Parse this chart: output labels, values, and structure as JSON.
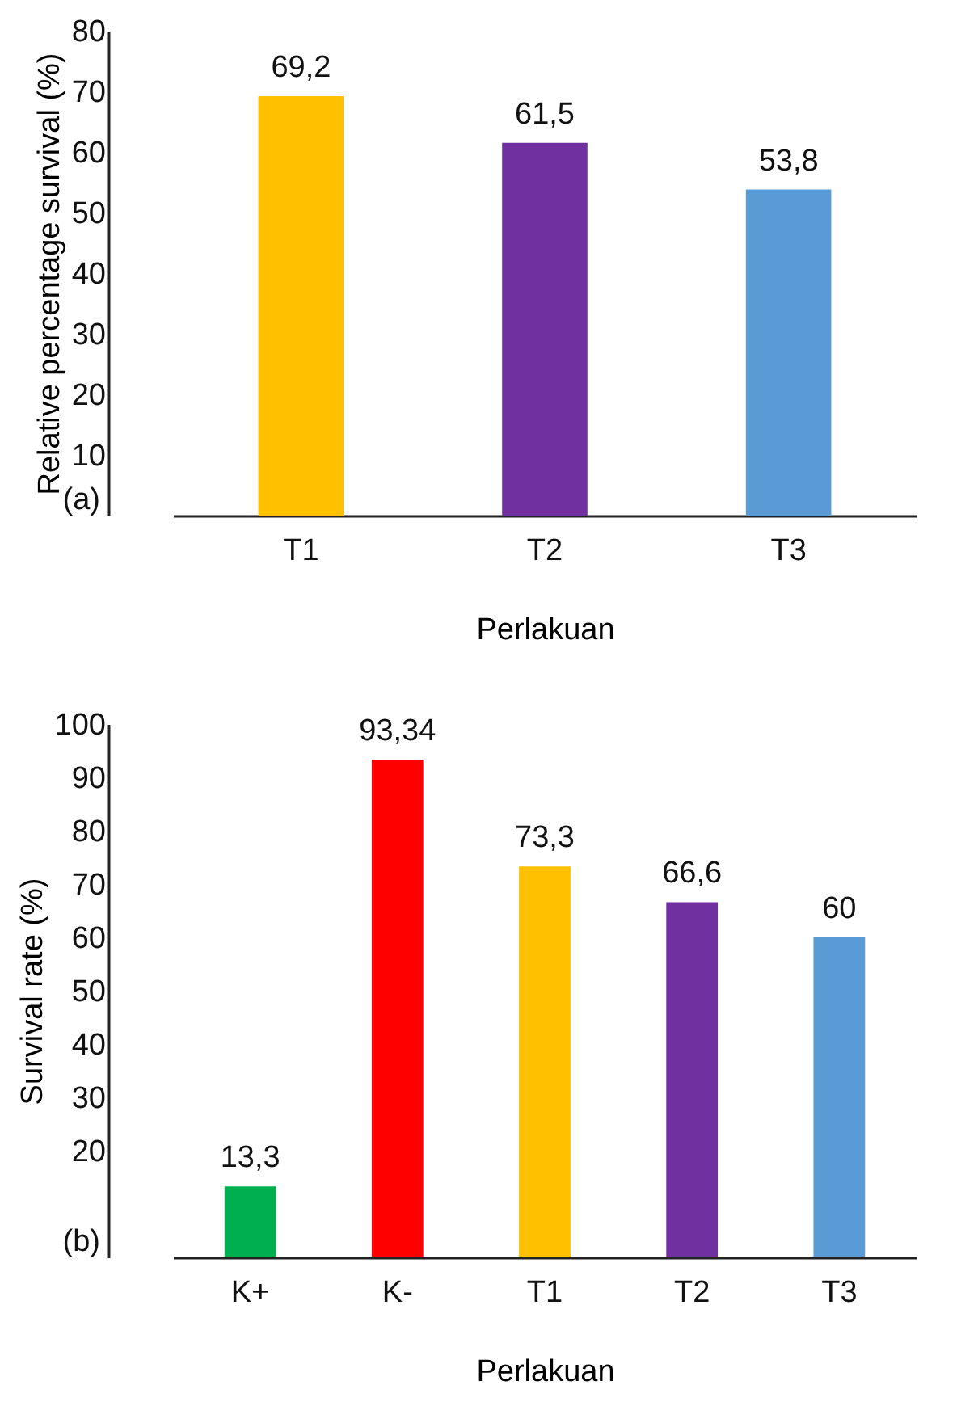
{
  "chart_data": [
    {
      "type": "bar",
      "xlabel": "Perlakuan",
      "ylabel": "Relative percentage survival (%)",
      "categories": [
        "T1",
        "T2",
        "T3"
      ],
      "values": [
        69.2,
        61.5,
        53.8
      ],
      "colors": [
        "#ffc000",
        "#7030a0",
        "#5b9bd5"
      ],
      "value_labels": [
        "69,2",
        "61,5",
        "53,8"
      ],
      "ylim": [
        0,
        80
      ],
      "yticks": [
        10,
        20,
        30,
        40,
        50,
        60,
        70,
        80
      ],
      "grid": false,
      "annotations": [
        "(a)"
      ]
    },
    {
      "type": "bar",
      "xlabel": "Perlakuan",
      "ylabel": "Survival rate (%)",
      "categories": [
        "K+",
        "K-",
        "T1",
        "T2",
        "T3"
      ],
      "values": [
        13.3,
        93.34,
        73.3,
        66.6,
        60
      ],
      "colors": [
        "#00b050",
        "#ff0000",
        "#ffc000",
        "#7030a0",
        "#5b9bd5"
      ],
      "value_labels": [
        "13,3",
        "93,34",
        "73,3",
        "66,6",
        "60"
      ],
      "ylim": [
        0,
        100
      ],
      "yticks": [
        20,
        30,
        40,
        50,
        60,
        70,
        80,
        90,
        100
      ],
      "grid": false,
      "annotations": [
        "(b)"
      ]
    }
  ]
}
